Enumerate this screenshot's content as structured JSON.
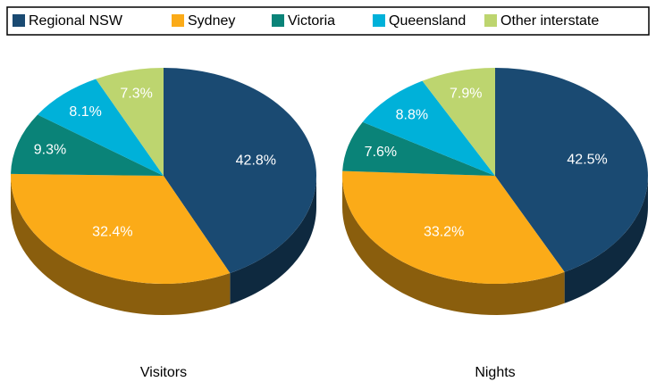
{
  "legend": {
    "labels": [
      "Regional NSW",
      "Sydney",
      "Victoria",
      "Queensland",
      "Other interstate"
    ],
    "colors": [
      "#1a4a72",
      "#fbab18",
      "#0a8378",
      "#00b1d9",
      "#bdd56f"
    ]
  },
  "chart_data": [
    {
      "type": "pie",
      "title": "Visitors",
      "values": [
        42.8,
        32.4,
        9.3,
        8.1,
        7.3
      ],
      "value_labels": [
        "42.8%",
        "32.4%",
        "9.3%",
        "8.1%",
        "7.3%"
      ]
    },
    {
      "type": "pie",
      "title": "Nights",
      "values": [
        42.5,
        33.2,
        7.6,
        8.8,
        7.9
      ],
      "value_labels": [
        "42.5%",
        "33.2%",
        "7.6%",
        "8.8%",
        "7.9%"
      ]
    }
  ]
}
